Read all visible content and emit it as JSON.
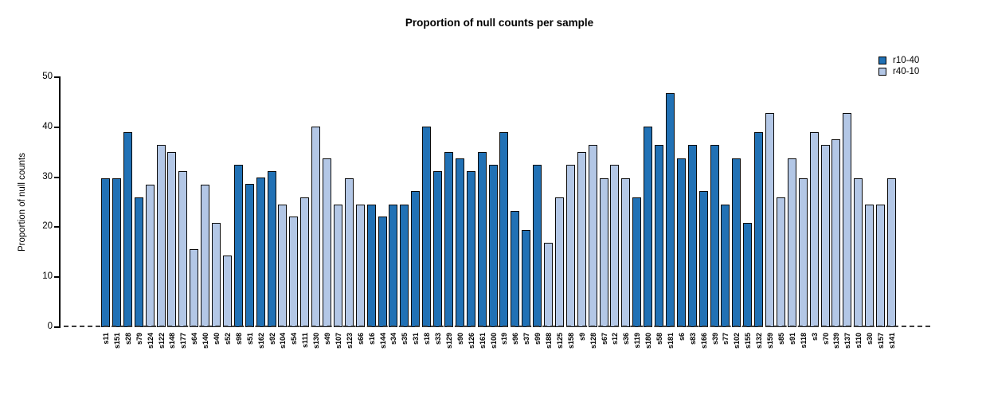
{
  "chart_data": {
    "type": "bar",
    "title": "Proportion of null counts per sample",
    "xlabel": "",
    "ylabel": "Proportion of null counts",
    "ylim": [
      0,
      50
    ],
    "yticks": [
      0,
      10,
      20,
      30,
      40,
      50
    ],
    "grid": false,
    "legend": {
      "position": "top-right",
      "entries": [
        {
          "name": "r10-40",
          "color": "#2171b5"
        },
        {
          "name": "r40-10",
          "color": "#b3c7e6"
        }
      ]
    },
    "zero_line": {
      "style": "dashed",
      "color": "#3b3b3b"
    },
    "bar_border_color": "#0a0a0a",
    "bars": [
      {
        "label": "s11",
        "value": 29.8,
        "series": "r10-40"
      },
      {
        "label": "s151",
        "value": 29.8,
        "series": "r10-40"
      },
      {
        "label": "s28",
        "value": 39.0,
        "series": "r10-40"
      },
      {
        "label": "s79",
        "value": 26.0,
        "series": "r10-40"
      },
      {
        "label": "s124",
        "value": 28.5,
        "series": "r40-10"
      },
      {
        "label": "s122",
        "value": 36.4,
        "series": "r40-10"
      },
      {
        "label": "s148",
        "value": 35.0,
        "series": "r40-10"
      },
      {
        "label": "s177",
        "value": 31.2,
        "series": "r40-10"
      },
      {
        "label": "s64",
        "value": 15.6,
        "series": "r40-10"
      },
      {
        "label": "s140",
        "value": 28.5,
        "series": "r40-10"
      },
      {
        "label": "s40",
        "value": 20.8,
        "series": "r40-10"
      },
      {
        "label": "s52",
        "value": 14.3,
        "series": "r40-10"
      },
      {
        "label": "s98",
        "value": 32.5,
        "series": "r10-40"
      },
      {
        "label": "s51",
        "value": 28.6,
        "series": "r10-40"
      },
      {
        "label": "s162",
        "value": 29.9,
        "series": "r10-40"
      },
      {
        "label": "s92",
        "value": 31.2,
        "series": "r10-40"
      },
      {
        "label": "s104",
        "value": 24.5,
        "series": "r40-10"
      },
      {
        "label": "s54",
        "value": 22.1,
        "series": "r40-10"
      },
      {
        "label": "s111",
        "value": 26.0,
        "series": "r40-10"
      },
      {
        "label": "s130",
        "value": 40.2,
        "series": "r40-10"
      },
      {
        "label": "s49",
        "value": 33.8,
        "series": "r40-10"
      },
      {
        "label": "s107",
        "value": 24.5,
        "series": "r40-10"
      },
      {
        "label": "s123",
        "value": 29.8,
        "series": "r40-10"
      },
      {
        "label": "s66",
        "value": 24.5,
        "series": "r40-10"
      },
      {
        "label": "s16",
        "value": 24.5,
        "series": "r10-40"
      },
      {
        "label": "s144",
        "value": 22.1,
        "series": "r10-40"
      },
      {
        "label": "s34",
        "value": 24.5,
        "series": "r10-40"
      },
      {
        "label": "s35",
        "value": 24.5,
        "series": "r10-40"
      },
      {
        "label": "s31",
        "value": 27.3,
        "series": "r10-40"
      },
      {
        "label": "s18",
        "value": 40.2,
        "series": "r10-40"
      },
      {
        "label": "s33",
        "value": 31.2,
        "series": "r10-40"
      },
      {
        "label": "s129",
        "value": 35.0,
        "series": "r10-40"
      },
      {
        "label": "s90",
        "value": 33.8,
        "series": "r10-40"
      },
      {
        "label": "s126",
        "value": 31.2,
        "series": "r10-40"
      },
      {
        "label": "s161",
        "value": 35.0,
        "series": "r10-40"
      },
      {
        "label": "s100",
        "value": 32.5,
        "series": "r10-40"
      },
      {
        "label": "s19",
        "value": 39.0,
        "series": "r10-40"
      },
      {
        "label": "s96",
        "value": 23.3,
        "series": "r10-40"
      },
      {
        "label": "s37",
        "value": 19.5,
        "series": "r10-40"
      },
      {
        "label": "s99",
        "value": 32.5,
        "series": "r10-40"
      },
      {
        "label": "s188",
        "value": 16.9,
        "series": "r40-10"
      },
      {
        "label": "s125",
        "value": 26.0,
        "series": "r40-10"
      },
      {
        "label": "s158",
        "value": 32.5,
        "series": "r40-10"
      },
      {
        "label": "s9",
        "value": 35.0,
        "series": "r40-10"
      },
      {
        "label": "s128",
        "value": 36.4,
        "series": "r40-10"
      },
      {
        "label": "s67",
        "value": 29.8,
        "series": "r40-10"
      },
      {
        "label": "s12",
        "value": 32.5,
        "series": "r40-10"
      },
      {
        "label": "s36",
        "value": 29.8,
        "series": "r40-10"
      },
      {
        "label": "s119",
        "value": 26.0,
        "series": "r10-40"
      },
      {
        "label": "s180",
        "value": 40.2,
        "series": "r10-40"
      },
      {
        "label": "s58",
        "value": 36.4,
        "series": "r10-40"
      },
      {
        "label": "s181",
        "value": 46.8,
        "series": "r10-40"
      },
      {
        "label": "s6",
        "value": 33.8,
        "series": "r10-40"
      },
      {
        "label": "s83",
        "value": 36.4,
        "series": "r10-40"
      },
      {
        "label": "s166",
        "value": 27.3,
        "series": "r10-40"
      },
      {
        "label": "s39",
        "value": 36.4,
        "series": "r10-40"
      },
      {
        "label": "s77",
        "value": 24.5,
        "series": "r10-40"
      },
      {
        "label": "s102",
        "value": 33.8,
        "series": "r10-40"
      },
      {
        "label": "s155",
        "value": 20.8,
        "series": "r10-40"
      },
      {
        "label": "s132",
        "value": 39.0,
        "series": "r10-40"
      },
      {
        "label": "s159",
        "value": 42.8,
        "series": "r40-10"
      },
      {
        "label": "s85",
        "value": 26.0,
        "series": "r40-10"
      },
      {
        "label": "s91",
        "value": 33.8,
        "series": "r40-10"
      },
      {
        "label": "s118",
        "value": 29.8,
        "series": "r40-10"
      },
      {
        "label": "s3",
        "value": 39.0,
        "series": "r40-10"
      },
      {
        "label": "s70",
        "value": 36.4,
        "series": "r40-10"
      },
      {
        "label": "s139",
        "value": 37.6,
        "series": "r40-10"
      },
      {
        "label": "s137",
        "value": 42.8,
        "series": "r40-10"
      },
      {
        "label": "s110",
        "value": 29.8,
        "series": "r40-10"
      },
      {
        "label": "s30",
        "value": 24.5,
        "series": "r40-10"
      },
      {
        "label": "s157",
        "value": 24.5,
        "series": "r40-10"
      },
      {
        "label": "s141",
        "value": 29.8,
        "series": "r40-10"
      }
    ]
  }
}
